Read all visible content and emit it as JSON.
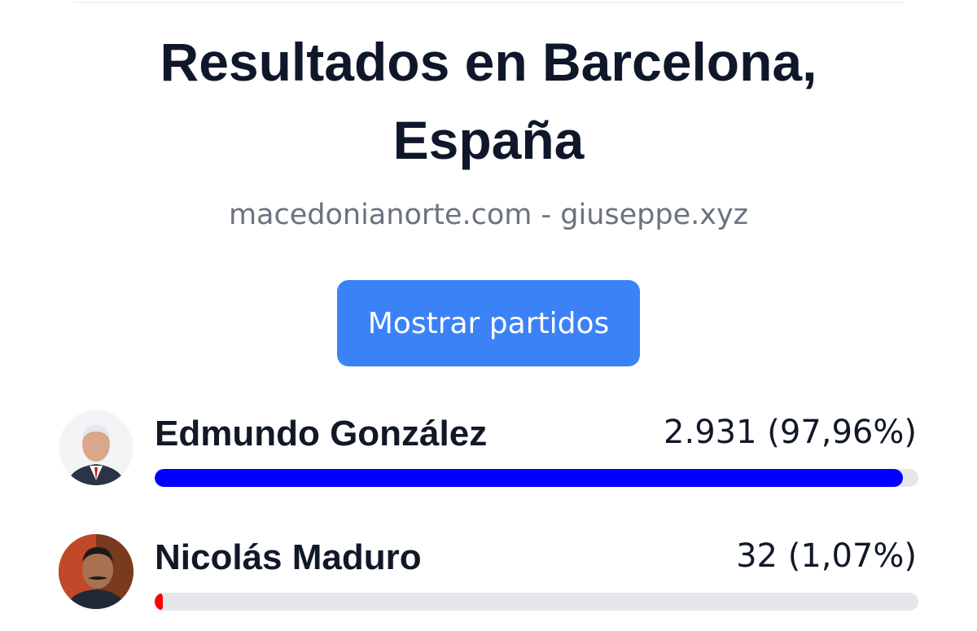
{
  "header": {
    "title": "Resultados en Barcelona, España",
    "subtitle": "macedonianorte.com - giuseppe.xyz"
  },
  "button": {
    "label": "Mostrar partidos"
  },
  "candidates": [
    {
      "name": "Edmundo González",
      "result": "2.931 (97,96%)",
      "share": 97.96,
      "color": "#0000ff"
    },
    {
      "name": "Nicolás Maduro",
      "result": "32 (1,07%)",
      "share": 1.07,
      "color": "#ff0000"
    }
  ]
}
